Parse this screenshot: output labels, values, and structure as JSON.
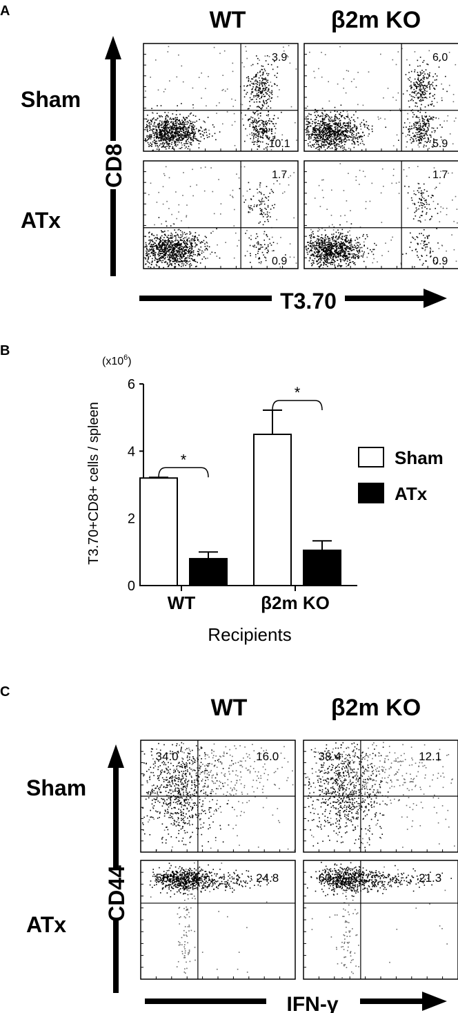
{
  "panel_a": {
    "letter": "A",
    "col_labels": [
      "WT",
      "β2m KO"
    ],
    "row_labels": [
      "Sham",
      "ATx"
    ],
    "y_axis": "CD8",
    "x_axis": "T3.70",
    "quadrant_values": [
      {
        "row": "Sham",
        "col": "WT",
        "upper_right": "3.9",
        "lower_right": "10.1"
      },
      {
        "row": "Sham",
        "col": "β2m KO",
        "upper_right": "6.0",
        "lower_right": "5.9"
      },
      {
        "row": "ATx",
        "col": "WT",
        "upper_right": "1.7",
        "lower_right": "0.9"
      },
      {
        "row": "ATx",
        "col": "β2m KO",
        "upper_right": "1.7",
        "lower_right": "0.9"
      }
    ]
  },
  "panel_b": {
    "letter": "B",
    "multiplier": "(x10",
    "multiplier_exp": "6",
    "multiplier_close": ")",
    "significance": "*"
  },
  "panel_c": {
    "letter": "C",
    "col_labels": [
      "WT",
      "β2m KO"
    ],
    "row_labels": [
      "Sham",
      "ATx"
    ],
    "y_axis": "CD44",
    "x_axis": "IFN-γ",
    "quadrant_values": [
      {
        "row": "Sham",
        "col": "WT",
        "upper_left": "34.0",
        "upper_right": "16.0"
      },
      {
        "row": "Sham",
        "col": "β2m KO",
        "upper_left": "38.4",
        "upper_right": "12.1"
      },
      {
        "row": "ATx",
        "col": "WT",
        "upper_left": "58.6",
        "upper_right": "24.8"
      },
      {
        "row": "ATx",
        "col": "β2m KO",
        "upper_left": "60.7",
        "upper_right": "21.3"
      }
    ]
  },
  "chart_data": {
    "type": "bar",
    "categories": [
      "WT",
      "β2m KO"
    ],
    "series": [
      {
        "name": "Sham",
        "values": [
          3.2,
          4.5
        ],
        "errors": [
          0.02,
          0.72
        ],
        "color": "#ffffff"
      },
      {
        "name": "ATx",
        "values": [
          0.8,
          1.05
        ],
        "errors": [
          0.2,
          0.28
        ],
        "color": "#000000"
      }
    ],
    "xlabel": "Recipients",
    "ylabel": "T3.70+CD8+ cells / spleen",
    "ylim": [
      0,
      6
    ],
    "yticks": [
      0,
      2,
      4,
      6
    ],
    "legend": "right",
    "grid": false
  }
}
